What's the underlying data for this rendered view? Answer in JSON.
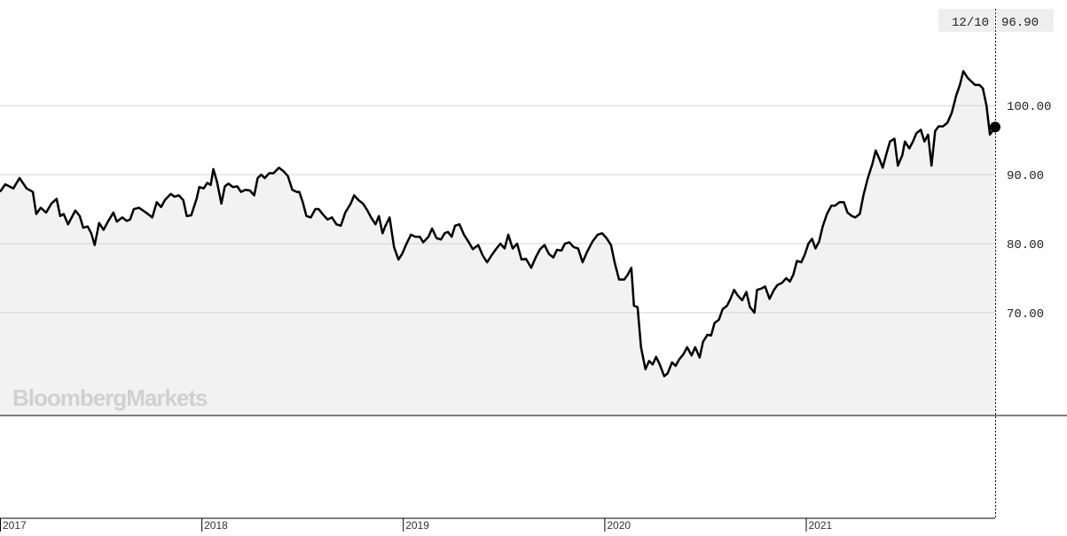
{
  "chart_data": {
    "type": "line",
    "watermark": "BloombergMarkets",
    "tooltip": {
      "date": "12/10",
      "value": "96.90"
    },
    "color": "#000000",
    "area_color": "#f2f2f2",
    "grid": true,
    "xlim": [
      2017,
      2021.94
    ],
    "xticks": [
      2017,
      2018,
      2019,
      2020,
      2021
    ],
    "ylim": [
      55.1,
      115.3
    ],
    "yticks": [
      {
        "value": 70,
        "label": "70.00"
      },
      {
        "value": 80,
        "label": "80.00"
      },
      {
        "value": 90,
        "label": "90.00"
      },
      {
        "value": 100,
        "label": "100.00"
      }
    ],
    "x": [
      2017.0,
      2017.026,
      2017.066,
      2017.097,
      2017.132,
      2017.163,
      2017.18,
      2017.202,
      2017.229,
      2017.255,
      2017.281,
      2017.299,
      2017.316,
      2017.338,
      2017.374,
      2017.396,
      2017.413,
      2017.435,
      2017.453,
      2017.47,
      2017.492,
      2017.514,
      2017.536,
      2017.563,
      2017.58,
      2017.607,
      2017.629,
      2017.646,
      2017.664,
      2017.69,
      2017.725,
      2017.756,
      2017.778,
      2017.8,
      2017.818,
      2017.848,
      2017.866,
      2017.888,
      2017.91,
      2017.927,
      2017.949,
      2017.976,
      2017.989,
      2018.011,
      2018.029,
      2018.046,
      2018.059,
      2018.077,
      2018.099,
      2018.116,
      2018.134,
      2018.156,
      2018.178,
      2018.196,
      2018.218,
      2018.24,
      2018.262,
      2018.279,
      2018.297,
      2018.314,
      2018.336,
      2018.358,
      2018.385,
      2018.407,
      2018.429,
      2018.451,
      2018.473,
      2018.486,
      2018.503,
      2018.521,
      2018.543,
      2018.565,
      2018.582,
      2018.604,
      2018.626,
      2018.648,
      2018.67,
      2018.692,
      2018.714,
      2018.741,
      2018.758,
      2018.78,
      2018.802,
      2018.824,
      2018.842,
      2018.864,
      2018.881,
      2018.899,
      2018.912,
      2018.934,
      2018.956,
      2018.978,
      2018.996,
      2019.018,
      2019.04,
      2019.062,
      2019.084,
      2019.101,
      2019.127,
      2019.145,
      2019.167,
      2019.189,
      2019.207,
      2019.224,
      2019.242,
      2019.259,
      2019.281,
      2019.303,
      2019.325,
      2019.347,
      2019.374,
      2019.396,
      2019.418,
      2019.44,
      2019.462,
      2019.484,
      2019.505,
      2019.523,
      2019.545,
      2019.567,
      2019.589,
      2019.611,
      2019.637,
      2019.659,
      2019.681,
      2019.703,
      2019.725,
      2019.747,
      2019.765,
      2019.787,
      2019.804,
      2019.826,
      2019.848,
      2019.87,
      2019.892,
      2019.914,
      2019.941,
      2019.967,
      2019.989,
      2020.011,
      2020.033,
      2020.051,
      2020.073,
      2020.099,
      2020.116,
      2020.134,
      2020.147,
      2020.165,
      2020.182,
      2020.204,
      2020.222,
      2020.24,
      2020.257,
      2020.275,
      2020.297,
      2020.314,
      2020.336,
      2020.354,
      2020.371,
      2020.393,
      2020.411,
      2020.433,
      2020.451,
      2020.473,
      2020.49,
      2020.512,
      2020.53,
      2020.547,
      2020.569,
      2020.587,
      2020.609,
      2020.626,
      2020.644,
      2020.662,
      2020.684,
      2020.705,
      2020.723,
      2020.745,
      2020.758,
      2020.78,
      2020.798,
      2020.82,
      2020.842,
      2020.859,
      2020.881,
      2020.903,
      2020.921,
      2020.938,
      2020.956,
      2020.978,
      2020.996,
      2021.013,
      2021.031,
      2021.048,
      2021.066,
      2021.084,
      2021.105,
      2021.127,
      2021.145,
      2021.167,
      2021.189,
      2021.207,
      2021.229,
      2021.246,
      2021.268,
      2021.286,
      2021.308,
      2021.33,
      2021.347,
      2021.365,
      2021.382,
      2021.4,
      2021.418,
      2021.44,
      2021.457,
      2021.479,
      2021.492,
      2021.514,
      2021.532,
      2021.549,
      2021.571,
      2021.589,
      2021.607,
      2021.624,
      2021.642,
      2021.659,
      2021.681,
      2021.703,
      2021.725,
      2021.747,
      2021.765,
      2021.782,
      2021.804,
      2021.822,
      2021.84,
      2021.862,
      2021.879,
      2021.897,
      2021.914,
      2021.94
    ],
    "values": [
      87.5,
      88.6,
      88.0,
      89.5,
      88.0,
      87.5,
      84.3,
      85.2,
      84.5,
      85.8,
      86.5,
      84.0,
      84.3,
      82.8,
      84.8,
      84.0,
      82.3,
      82.5,
      81.5,
      79.8,
      83.0,
      82.0,
      83.2,
      84.5,
      83.2,
      83.8,
      83.3,
      83.5,
      85.0,
      85.2,
      84.5,
      83.8,
      86.0,
      85.3,
      86.3,
      87.2,
      86.8,
      87.0,
      86.3,
      84.0,
      84.1,
      86.5,
      88.2,
      88.0,
      88.8,
      88.5,
      90.8,
      89.0,
      85.8,
      88.3,
      88.7,
      88.2,
      88.3,
      87.5,
      87.8,
      87.7,
      87.0,
      89.5,
      90.0,
      89.5,
      90.2,
      90.2,
      91.0,
      90.5,
      89.8,
      87.8,
      87.5,
      87.5,
      86.0,
      84.0,
      83.8,
      85.0,
      85.0,
      84.2,
      83.5,
      83.8,
      82.8,
      82.6,
      84.5,
      85.8,
      87.0,
      86.3,
      85.8,
      84.8,
      83.8,
      82.8,
      84.0,
      81.5,
      82.5,
      83.8,
      79.5,
      77.7,
      78.5,
      80.0,
      81.3,
      81.0,
      81.0,
      80.2,
      81.0,
      82.2,
      80.8,
      80.6,
      81.5,
      81.7,
      81.0,
      82.6,
      82.8,
      81.3,
      80.3,
      79.2,
      79.8,
      78.3,
      77.3,
      78.3,
      79.2,
      80.0,
      79.3,
      81.3,
      79.3,
      80.0,
      77.7,
      77.8,
      76.5,
      78.0,
      79.2,
      79.8,
      78.5,
      78.0,
      79.1,
      79.0,
      80.0,
      80.2,
      79.5,
      79.3,
      77.3,
      78.8,
      80.3,
      81.3,
      81.5,
      80.8,
      79.8,
      77.3,
      74.8,
      74.8,
      75.5,
      76.5,
      71.0,
      70.8,
      65.0,
      61.8,
      63.0,
      62.5,
      63.6,
      62.5,
      60.8,
      61.2,
      62.8,
      62.3,
      63.2,
      64.0,
      65.0,
      63.8,
      65.0,
      63.5,
      65.8,
      66.8,
      66.7,
      68.5,
      69.0,
      70.5,
      71.0,
      72.0,
      73.3,
      72.5,
      71.8,
      73.0,
      70.8,
      70.0,
      73.3,
      73.5,
      73.8,
      72.0,
      73.3,
      74.0,
      74.3,
      75.0,
      74.5,
      75.5,
      77.5,
      77.3,
      78.5,
      80.0,
      80.7,
      79.3,
      80.3,
      82.5,
      84.3,
      85.5,
      85.5,
      86.0,
      86.0,
      84.5,
      84.0,
      83.8,
      84.3,
      87.0,
      89.5,
      91.5,
      93.5,
      92.3,
      91.0,
      93.0,
      94.8,
      95.2,
      91.3,
      92.8,
      94.8,
      93.8,
      94.8,
      96.0,
      96.5,
      94.8,
      95.8,
      91.3,
      96.3,
      97.0,
      97.0,
      97.5,
      99.0,
      101.5,
      103.0,
      105.0,
      104.0,
      103.5,
      103.0,
      103.0,
      102.5,
      100.0,
      95.8,
      96.9
    ]
  }
}
